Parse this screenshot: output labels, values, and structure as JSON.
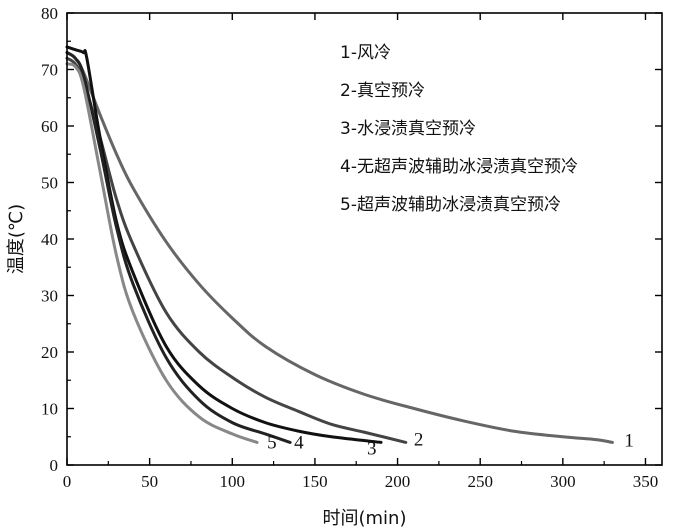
{
  "chart_data": {
    "type": "line",
    "xlabel": "时间(min)",
    "ylabel": "温度(℃)",
    "xlim": [
      0,
      360
    ],
    "ylim": [
      0,
      80
    ],
    "xticks": [
      0,
      50,
      100,
      150,
      200,
      250,
      300,
      350
    ],
    "yticks": [
      0,
      10,
      20,
      30,
      40,
      50,
      60,
      70,
      80
    ],
    "grid": false,
    "legend_position": "top-right",
    "legend": [
      "1-风冷",
      "2-真空预冷",
      "3-水浸渍真空预冷",
      "4-无超声波辅助冰浸渍真空预冷",
      "5-超声波辅助冰浸渍真空预冷"
    ],
    "series": [
      {
        "label": "1",
        "color": "#666666",
        "x": [
          0,
          5,
          10,
          20,
          30,
          40,
          60,
          80,
          100,
          120,
          150,
          180,
          210,
          240,
          270,
          300,
          320,
          330
        ],
        "y": [
          73,
          72,
          69.5,
          62,
          55,
          49,
          39.5,
          32,
          26,
          21,
          16,
          12.5,
          10,
          7.8,
          6,
          5,
          4.5,
          4
        ]
      },
      {
        "label": "2",
        "color": "#444444",
        "x": [
          0,
          5,
          10,
          20,
          30,
          40,
          60,
          80,
          100,
          120,
          140,
          160,
          180,
          205
        ],
        "y": [
          72,
          71,
          68,
          58,
          47,
          39,
          27,
          20,
          15.5,
          12,
          9.5,
          7.2,
          5.8,
          4
        ]
      },
      {
        "label": "3",
        "color": "#111111",
        "x": [
          0,
          5,
          10,
          12,
          20,
          30,
          40,
          60,
          80,
          100,
          120,
          140,
          160,
          190
        ],
        "y": [
          74,
          73.5,
          73,
          72,
          58,
          43,
          34,
          21,
          14,
          10,
          7.5,
          6,
          5,
          4
        ]
      },
      {
        "label": "4",
        "color": "#222222",
        "x": [
          0,
          5,
          10,
          20,
          30,
          40,
          60,
          80,
          100,
          120,
          135
        ],
        "y": [
          73,
          72,
          69,
          56,
          42,
          32,
          19,
          11.5,
          7.5,
          5.5,
          4
        ]
      },
      {
        "label": "5",
        "color": "#888888",
        "x": [
          0,
          5,
          10,
          20,
          30,
          40,
          60,
          80,
          100,
          115
        ],
        "y": [
          71,
          70.5,
          67,
          52,
          37,
          27,
          15,
          8.5,
          5.5,
          4
        ]
      }
    ]
  }
}
